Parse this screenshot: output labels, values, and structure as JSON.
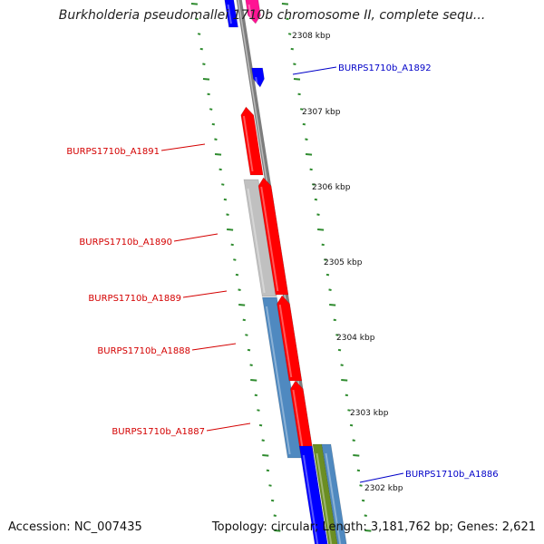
{
  "title": "Burkholderia pseudomallei 1710b chromosome II, complete sequ...",
  "accession": "Accession: NC_007435",
  "summary": "Topology: circular; Length: 3,181,762 bp; Genes: 2,621",
  "colors": {
    "backbone": "#8a8a8a",
    "tick_dots": "#2e8b2e",
    "reverse_label": "#d40000",
    "forward_label": "#0000c8",
    "red_gene": "#ff0000",
    "blue_gene": "#0000ff",
    "magenta_gene": "#ff1493",
    "grey_gene": "#c0c0c0",
    "steelblue_gene": "#4f89c0",
    "olive_gene": "#6b8e23"
  },
  "scale_ticks": [
    "2308 kbp",
    "2307 kbp",
    "2306 kbp",
    "2305 kbp",
    "2304 kbp",
    "2303 kbp",
    "2302 kbp"
  ],
  "gene_labels": [
    {
      "text": "BURPS1710b_A1892",
      "strand": "forward"
    },
    {
      "text": "BURPS1710b_A1891",
      "strand": "reverse"
    },
    {
      "text": "BURPS1710b_A1890",
      "strand": "reverse"
    },
    {
      "text": "BURPS1710b_A1889",
      "strand": "reverse"
    },
    {
      "text": "BURPS1710b_A1888",
      "strand": "reverse"
    },
    {
      "text": "BURPS1710b_A1887",
      "strand": "reverse"
    },
    {
      "text": "BURPS1710b_A1886",
      "strand": "forward"
    }
  ]
}
